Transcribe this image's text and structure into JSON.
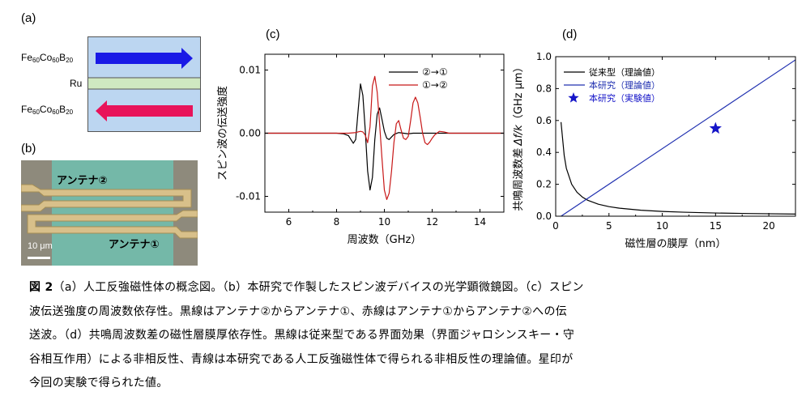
{
  "panels": {
    "a": {
      "label": "(a)",
      "top_layer": {
        "base": "Fe",
        "s1": "60",
        "mid1": "Co",
        "s2": "60",
        "mid2": "B",
        "s3": "20"
      },
      "spacer": "Ru",
      "bottom_layer": {
        "base": "Fe",
        "s1": "60",
        "mid1": "Co",
        "s2": "60",
        "mid2": "B",
        "s3": "20"
      },
      "colors": {
        "layer_bg": "#bcd6f1",
        "spacer": "#cfe8c1",
        "arrow_top": "#1a1ae6",
        "arrow_bottom": "#e8135a"
      }
    },
    "b": {
      "label": "(b)",
      "antenna2": "アンテナ②",
      "antenna1": "アンテナ①",
      "scale": "10 μm",
      "colors": {
        "substrate": "#8e8a7c",
        "film": "#74b8a8",
        "gold": "#d8c08a"
      }
    }
  },
  "chart_data": [
    {
      "type": "line",
      "panel_label": "(c)",
      "xlabel": "周波数（GHz）",
      "ylabel": "スピン波の伝送強度",
      "xlim": [
        5,
        15
      ],
      "ylim": [
        -0.0125,
        0.0125
      ],
      "xticks": [
        6,
        8,
        10,
        12,
        14
      ],
      "yticks": [
        0.01,
        0.0,
        -0.01
      ],
      "ytick_labels": [
        "0.01",
        "0.00",
        "-0.01"
      ],
      "grid": false,
      "legend_position": "top-right",
      "series": [
        {
          "name": "②→①",
          "color": "#000000",
          "x": [
            5,
            8.0,
            8.3,
            8.5,
            8.6,
            8.7,
            8.8,
            8.9,
            9.0,
            9.1,
            9.2,
            9.3,
            9.4,
            9.5,
            9.6,
            9.7,
            9.8,
            9.9,
            10.0,
            10.1,
            10.2,
            10.3,
            10.4,
            10.6,
            10.8,
            11.0,
            11.2,
            11.5,
            12,
            15
          ],
          "y": [
            0,
            0,
            -0.0001,
            -0.0004,
            -0.001,
            -0.0016,
            -0.001,
            0.0035,
            0.0078,
            0.006,
            0.0005,
            -0.006,
            -0.009,
            -0.007,
            -0.001,
            0.003,
            0.004,
            0.0022,
            0.0003,
            -0.0008,
            -0.001,
            -0.0006,
            -0.0002,
            0.0001,
            0.0,
            -0.0001,
            0.0,
            0.0,
            0,
            0
          ]
        },
        {
          "name": "①→②",
          "color": "#c81818",
          "x": [
            5,
            8.0,
            8.5,
            8.8,
            9.0,
            9.1,
            9.2,
            9.3,
            9.4,
            9.5,
            9.6,
            9.7,
            9.8,
            9.9,
            10.0,
            10.1,
            10.2,
            10.3,
            10.4,
            10.5,
            10.6,
            10.7,
            10.8,
            10.9,
            11.0,
            11.1,
            11.2,
            11.3,
            11.4,
            11.5,
            11.6,
            11.7,
            11.8,
            11.9,
            12.0,
            12.1,
            12.2,
            12.3,
            12.5,
            12.7,
            13.0,
            15
          ],
          "y": [
            0,
            0,
            0,
            0.0001,
            0.0003,
            0.0002,
            -0.0003,
            -0.0015,
            0.001,
            0.0075,
            0.009,
            0.0065,
            0.0015,
            -0.004,
            -0.009,
            -0.0105,
            -0.0095,
            -0.006,
            -0.0015,
            0.0015,
            0.002,
            0.0005,
            -0.0008,
            -0.001,
            -0.0005,
            0.002,
            0.0048,
            0.0057,
            0.0048,
            0.0025,
            0.0,
            -0.0015,
            -0.0018,
            -0.0014,
            -0.0008,
            -0.0003,
            0.0,
            0.0003,
            0.0002,
            0.0,
            0,
            0
          ]
        }
      ]
    },
    {
      "type": "line",
      "panel_label": "(d)",
      "xlabel": "磁性層の膜厚（nm）",
      "ylabel": "共鳴周波数差",
      "ylabel_symbol": "Δf/k",
      "ylabel_unit": "（GHz μm）",
      "xlim": [
        0,
        22.5
      ],
      "ylim": [
        0,
        1.0
      ],
      "xticks": [
        0,
        5,
        10,
        15,
        20
      ],
      "yticks": [
        0.0,
        0.2,
        0.4,
        0.6,
        0.8,
        1.0
      ],
      "ytick_labels": [
        "0.0",
        "0.2",
        "0.4",
        "0.6",
        "0.8",
        "1.0"
      ],
      "grid": false,
      "legend_position": "top-left",
      "series": [
        {
          "name": "従来型（理論値）",
          "color": "#000000",
          "x": [
            0.5,
            0.8,
            1,
            1.5,
            2,
            2.5,
            3,
            4,
            5,
            6,
            8,
            10,
            12,
            15,
            18,
            22.5
          ],
          "y": [
            0.59,
            0.38,
            0.3,
            0.2,
            0.15,
            0.12,
            0.1,
            0.075,
            0.06,
            0.05,
            0.0375,
            0.03,
            0.025,
            0.02,
            0.0167,
            0.0133
          ]
        },
        {
          "name": "本研究（理論値）",
          "color": "#2030b0",
          "x": [
            0.5,
            22.5
          ],
          "y": [
            0.0,
            0.98
          ]
        },
        {
          "name": "本研究（実験値）",
          "color": "#1515c8",
          "marker": "star",
          "x": [
            15
          ],
          "y": [
            0.55
          ]
        }
      ]
    }
  ],
  "caption": {
    "fig_label": "図 2",
    "lines": [
      "（a）人工反強磁性体の概念図。（b）本研究で作製したスピン波デバイスの光学顕微鏡図。（c）スピン",
      "波伝送強度の周波数依存性。黒線はアンテナ②からアンテナ①、赤線はアンテナ①からアンテナ②への伝",
      "送波。（d）共鳴周波数差の磁性層膜厚依存性。黒線は従来型である界面効果（界面ジャロシンスキー・守",
      "谷相互作用）による非相反性、青線は本研究である人工反強磁性体で得られる非相反性の理論値。星印が",
      "今回の実験で得られた値。"
    ]
  }
}
